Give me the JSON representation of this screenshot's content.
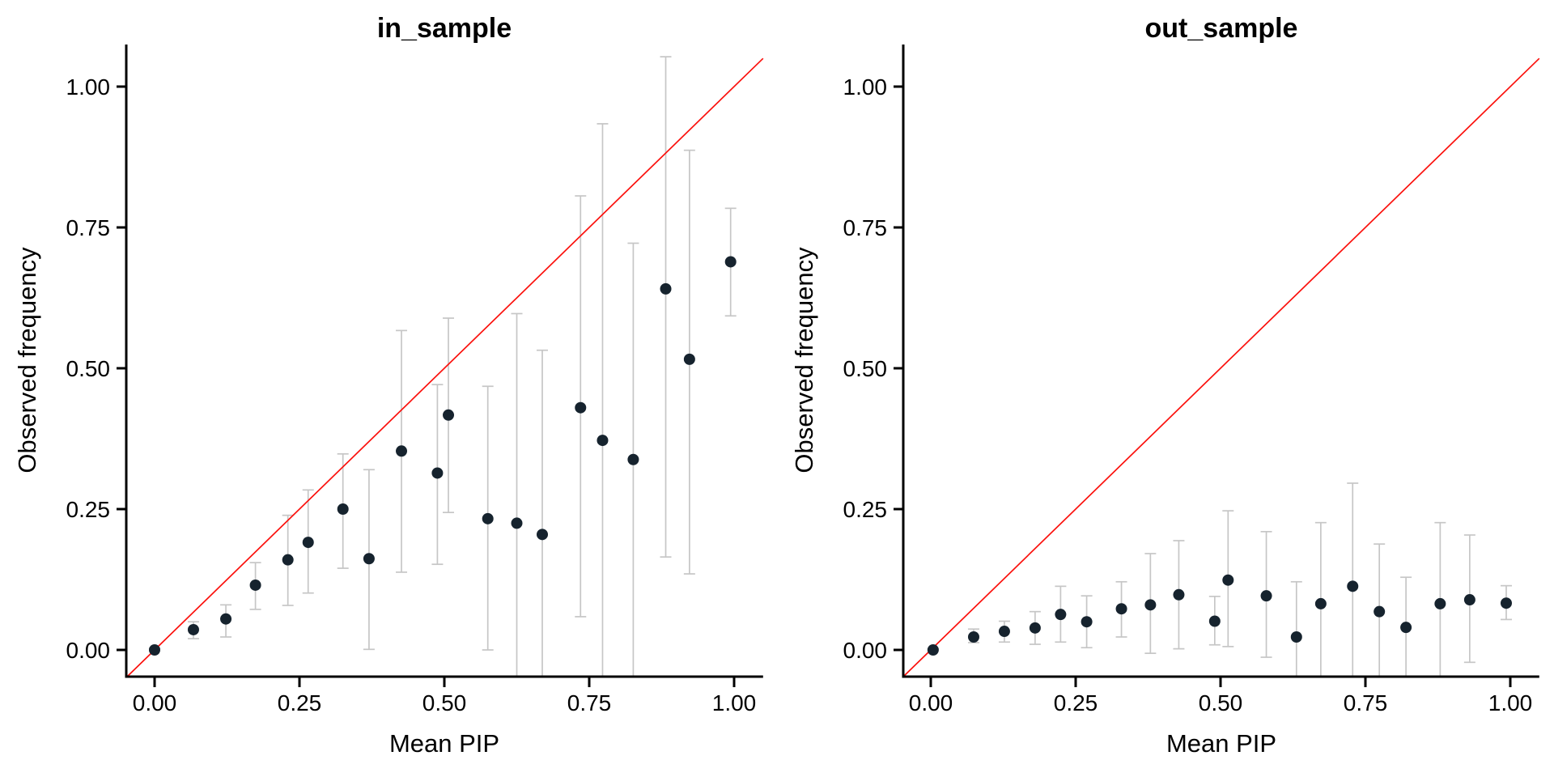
{
  "figure": {
    "background": "#ffffff",
    "axis_color": "#000000",
    "point_color": "#16232e",
    "errorbar_color": "#c6c6c6",
    "reference_line_color": "#fb100c"
  },
  "chart_data": [
    {
      "type": "scatter",
      "title": "in_sample",
      "xlabel": "Mean PIP",
      "ylabel": "Observed frequency",
      "xlim": [
        -0.05,
        1.05
      ],
      "ylim": [
        -0.047,
        1.075
      ],
      "grid": false,
      "legend": "none",
      "x_tick_values": [
        0,
        0.25,
        0.5,
        0.75,
        1.0
      ],
      "x_tick_labels": [
        "0.00",
        "0.25",
        "0.50",
        "0.75",
        "1.00"
      ],
      "y_tick_values": [
        0,
        0.25,
        0.5,
        0.75,
        1.0
      ],
      "y_tick_labels": [
        "0.00",
        "0.25",
        "0.50",
        "0.75",
        "1.00"
      ],
      "reference_line": "identity (y = x)",
      "points": [
        {
          "x": 0.0,
          "y": 0.0,
          "lo": 0.0,
          "hi": 0.003
        },
        {
          "x": 0.067,
          "y": 0.036,
          "lo": 0.02,
          "hi": 0.05
        },
        {
          "x": 0.123,
          "y": 0.055,
          "lo": 0.023,
          "hi": 0.08
        },
        {
          "x": 0.174,
          "y": 0.115,
          "lo": 0.072,
          "hi": 0.155
        },
        {
          "x": 0.23,
          "y": 0.16,
          "lo": 0.079,
          "hi": 0.239
        },
        {
          "x": 0.265,
          "y": 0.191,
          "lo": 0.101,
          "hi": 0.284
        },
        {
          "x": 0.325,
          "y": 0.25,
          "lo": 0.145,
          "hi": 0.348
        },
        {
          "x": 0.37,
          "y": 0.162,
          "lo": 0.001,
          "hi": 0.32
        },
        {
          "x": 0.426,
          "y": 0.353,
          "lo": 0.138,
          "hi": 0.567
        },
        {
          "x": 0.488,
          "y": 0.314,
          "lo": 0.152,
          "hi": 0.471
        },
        {
          "x": 0.507,
          "y": 0.417,
          "lo": 0.244,
          "hi": 0.589
        },
        {
          "x": 0.575,
          "y": 0.233,
          "lo": 0.0,
          "hi": 0.468
        },
        {
          "x": 0.625,
          "y": 0.225,
          "lo": null,
          "hi": 0.597
        },
        {
          "x": 0.669,
          "y": 0.205,
          "lo": null,
          "hi": 0.532
        },
        {
          "x": 0.735,
          "y": 0.43,
          "lo": 0.059,
          "hi": 0.806
        },
        {
          "x": 0.773,
          "y": 0.372,
          "lo": null,
          "hi": 0.934
        },
        {
          "x": 0.826,
          "y": 0.338,
          "lo": null,
          "hi": 0.722
        },
        {
          "x": 0.882,
          "y": 0.641,
          "lo": 0.165,
          "hi": 1.053
        },
        {
          "x": 0.923,
          "y": 0.516,
          "lo": 0.135,
          "hi": 0.887
        },
        {
          "x": 0.994,
          "y": 0.689,
          "lo": 0.593,
          "hi": 0.784
        }
      ]
    },
    {
      "type": "scatter",
      "title": "out_sample",
      "xlabel": "Mean PIP",
      "ylabel": "Observed frequency",
      "xlim": [
        -0.05,
        1.05
      ],
      "ylim": [
        -0.047,
        1.075
      ],
      "grid": false,
      "legend": "none",
      "x_tick_values": [
        0,
        0.25,
        0.5,
        0.75,
        1.0
      ],
      "x_tick_labels": [
        "0.00",
        "0.25",
        "0.50",
        "0.75",
        "1.00"
      ],
      "y_tick_values": [
        0,
        0.25,
        0.5,
        0.75,
        1.0
      ],
      "y_tick_labels": [
        "0.00",
        "0.25",
        "0.50",
        "0.75",
        "1.00"
      ],
      "reference_line": "identity (y = x)",
      "points": [
        {
          "x": 0.004,
          "y": 0.0,
          "lo": 0.0,
          "hi": 0.002
        },
        {
          "x": 0.074,
          "y": 0.023,
          "lo": 0.013,
          "hi": 0.037
        },
        {
          "x": 0.127,
          "y": 0.033,
          "lo": 0.014,
          "hi": 0.051
        },
        {
          "x": 0.18,
          "y": 0.039,
          "lo": 0.01,
          "hi": 0.068
        },
        {
          "x": 0.224,
          "y": 0.063,
          "lo": 0.014,
          "hi": 0.113
        },
        {
          "x": 0.269,
          "y": 0.05,
          "lo": 0.004,
          "hi": 0.096
        },
        {
          "x": 0.329,
          "y": 0.073,
          "lo": 0.023,
          "hi": 0.121
        },
        {
          "x": 0.379,
          "y": 0.08,
          "lo": -0.006,
          "hi": 0.171
        },
        {
          "x": 0.428,
          "y": 0.098,
          "lo": 0.002,
          "hi": 0.194
        },
        {
          "x": 0.49,
          "y": 0.051,
          "lo": 0.009,
          "hi": 0.095
        },
        {
          "x": 0.513,
          "y": 0.124,
          "lo": 0.006,
          "hi": 0.247
        },
        {
          "x": 0.579,
          "y": 0.096,
          "lo": -0.013,
          "hi": 0.21
        },
        {
          "x": 0.631,
          "y": 0.023,
          "lo": null,
          "hi": 0.121
        },
        {
          "x": 0.673,
          "y": 0.082,
          "lo": null,
          "hi": 0.226
        },
        {
          "x": 0.728,
          "y": 0.113,
          "lo": null,
          "hi": 0.296
        },
        {
          "x": 0.774,
          "y": 0.068,
          "lo": null,
          "hi": 0.188
        },
        {
          "x": 0.82,
          "y": 0.04,
          "lo": null,
          "hi": 0.129
        },
        {
          "x": 0.879,
          "y": 0.082,
          "lo": null,
          "hi": 0.226
        },
        {
          "x": 0.93,
          "y": 0.089,
          "lo": -0.022,
          "hi": 0.204
        },
        {
          "x": 0.993,
          "y": 0.083,
          "lo": 0.054,
          "hi": 0.114
        }
      ]
    }
  ]
}
